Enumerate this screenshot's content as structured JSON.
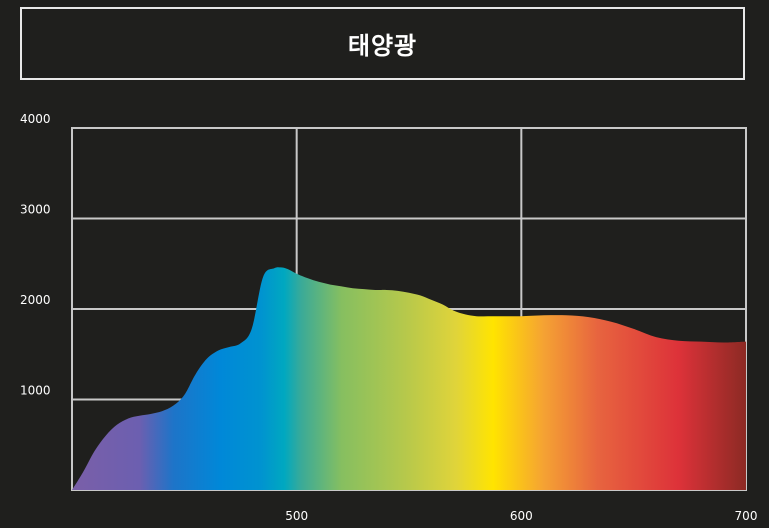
{
  "title": "태양광",
  "colors": {
    "background": "#1f1f1d",
    "grid": "#c8c8c8",
    "text": "#ffffff"
  },
  "chart_data": {
    "type": "area",
    "title": "태양광",
    "xlabel": "",
    "ylabel": "",
    "xlim": [
      400,
      700
    ],
    "ylim": [
      0,
      4000
    ],
    "x_ticks": [
      {
        "value": 500,
        "label": "500"
      },
      {
        "value": 600,
        "label": "600"
      },
      {
        "value": 700,
        "label": "700"
      }
    ],
    "y_ticks": [
      {
        "value": 1000,
        "label": "1000"
      },
      {
        "value": 2000,
        "label": "2000"
      },
      {
        "value": 3000,
        "label": "3000"
      },
      {
        "value": 4000,
        "label": "4000"
      }
    ],
    "grid": true,
    "fill": "visible-spectrum gradient",
    "x": [
      400,
      405,
      410,
      415,
      420,
      425,
      430,
      435,
      440,
      445,
      450,
      455,
      460,
      465,
      470,
      475,
      480,
      485,
      490,
      493,
      495,
      497,
      500,
      505,
      510,
      515,
      520,
      525,
      530,
      535,
      540,
      545,
      550,
      555,
      560,
      565,
      570,
      575,
      580,
      585,
      590,
      595,
      600,
      610,
      620,
      630,
      640,
      650,
      660,
      670,
      680,
      690,
      700
    ],
    "values": [
      0,
      200,
      430,
      600,
      720,
      790,
      820,
      840,
      870,
      930,
      1050,
      1280,
      1450,
      1540,
      1580,
      1620,
      1780,
      2350,
      2450,
      2460,
      2450,
      2430,
      2390,
      2340,
      2300,
      2270,
      2250,
      2230,
      2220,
      2210,
      2210,
      2200,
      2180,
      2150,
      2100,
      2050,
      1980,
      1940,
      1920,
      1920,
      1920,
      1920,
      1920,
      1930,
      1930,
      1910,
      1860,
      1780,
      1690,
      1650,
      1640,
      1630,
      1640
    ]
  }
}
